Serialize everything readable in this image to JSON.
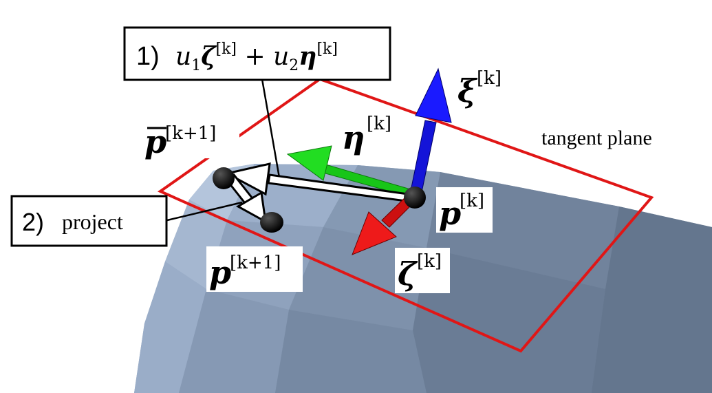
{
  "labels": {
    "step1_number": "1)",
    "step2_number": "2)",
    "step2_text": "project",
    "tangent_plane": "tangent plane",
    "superscript_k": "[k]",
    "superscript_k1": "[k+1]"
  },
  "colors": {
    "plane_outline": "#e01616",
    "xi_arrow": "#1a1aff",
    "eta_arrow": "#22dd22",
    "zeta_arrow": "#ee1a1a",
    "surface_light": "#9fb3cf",
    "surface_dark": "#6f8198"
  }
}
